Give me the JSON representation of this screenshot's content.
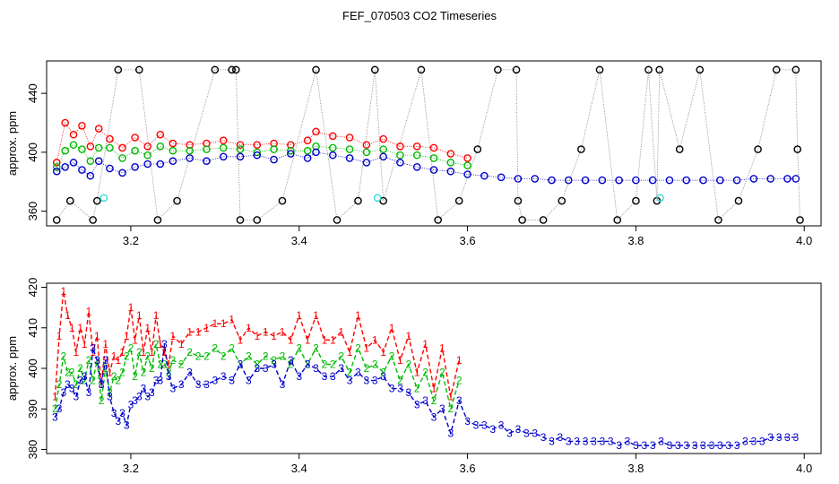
{
  "title": "FEF_070503  CO2 Timeseries",
  "colors": {
    "line1": "#ff0000",
    "line2": "#00bb00",
    "line3": "#0000cc",
    "black": "#000000",
    "cyan": "#33dddd"
  },
  "chart_data": [
    {
      "type": "scatter",
      "ylabel": "approx. ppm",
      "xlim": [
        3.1,
        4.02
      ],
      "ylim": [
        350,
        462
      ],
      "xticks": [
        "3.2",
        "3.4",
        "3.6",
        "3.8",
        "4.0"
      ],
      "xtick_values": [
        3.2,
        3.4,
        3.6,
        3.8,
        4.0
      ],
      "yticks": [
        "360",
        "400",
        "440"
      ],
      "ytick_values": [
        360,
        400,
        440
      ],
      "series": [
        {
          "key": "red",
          "color": "#ff0000",
          "x": [
            3.112,
            3.122,
            3.132,
            3.142,
            3.152,
            3.162,
            3.175,
            3.19,
            3.205,
            3.22,
            3.235,
            3.25,
            3.27,
            3.29,
            3.31,
            3.33,
            3.35,
            3.37,
            3.39,
            3.41,
            3.42,
            3.44,
            3.46,
            3.48,
            3.5,
            3.52,
            3.54,
            3.56,
            3.58,
            3.6
          ],
          "y": [
            393,
            420,
            412,
            418,
            404,
            416,
            409,
            403,
            410,
            404,
            412,
            406,
            405,
            406,
            408,
            405,
            405,
            406,
            405,
            408,
            414,
            411,
            410,
            405,
            409,
            404,
            404,
            403,
            399,
            396
          ]
        },
        {
          "key": "green",
          "color": "#00bb00",
          "x": [
            3.112,
            3.122,
            3.132,
            3.142,
            3.152,
            3.162,
            3.175,
            3.19,
            3.205,
            3.22,
            3.235,
            3.25,
            3.27,
            3.29,
            3.31,
            3.33,
            3.35,
            3.37,
            3.39,
            3.41,
            3.42,
            3.44,
            3.46,
            3.48,
            3.5,
            3.52,
            3.54,
            3.56,
            3.58,
            3.6
          ],
          "y": [
            390,
            401,
            405,
            402,
            394,
            403,
            403,
            396,
            401,
            398,
            404,
            401,
            401,
            402,
            403,
            402,
            400,
            402,
            401,
            401,
            404,
            403,
            402,
            400,
            402,
            398,
            398,
            396,
            393,
            391
          ]
        },
        {
          "key": "blue",
          "color": "#0000cc",
          "x": [
            3.112,
            3.122,
            3.132,
            3.142,
            3.152,
            3.162,
            3.175,
            3.19,
            3.205,
            3.22,
            3.235,
            3.25,
            3.27,
            3.29,
            3.31,
            3.33,
            3.35,
            3.37,
            3.39,
            3.41,
            3.42,
            3.44,
            3.46,
            3.48,
            3.5,
            3.52,
            3.54,
            3.56,
            3.58,
            3.6,
            3.62,
            3.64,
            3.66,
            3.68,
            3.7,
            3.72,
            3.74,
            3.76,
            3.78,
            3.8,
            3.82,
            3.84,
            3.86,
            3.88,
            3.9,
            3.92,
            3.94,
            3.96,
            3.98,
            3.99
          ],
          "y": [
            387,
            390,
            393,
            388,
            384,
            394,
            389,
            386,
            390,
            392,
            392,
            394,
            396,
            394,
            397,
            397,
            398,
            395,
            399,
            396,
            400,
            398,
            396,
            393,
            397,
            393,
            390,
            388,
            387,
            385,
            384,
            383,
            382,
            382,
            381,
            381,
            381,
            381,
            381,
            381,
            381,
            381,
            381,
            381,
            381,
            381,
            382,
            382,
            382,
            382
          ]
        },
        {
          "key": "black",
          "color": "#000000",
          "x": [
            3.112,
            3.128,
            3.155,
            3.16,
            3.185,
            3.21,
            3.232,
            3.255,
            3.3,
            3.32,
            3.325,
            3.33,
            3.35,
            3.38,
            3.42,
            3.445,
            3.47,
            3.49,
            3.5,
            3.545,
            3.565,
            3.59,
            3.612,
            3.636,
            3.658,
            3.66,
            3.665,
            3.69,
            3.712,
            3.735,
            3.757,
            3.778,
            3.8,
            3.815,
            3.825,
            3.828,
            3.852,
            3.876,
            3.898,
            3.922,
            3.945,
            3.967,
            3.99,
            3.992,
            3.995
          ],
          "y": [
            354,
            367,
            354,
            367,
            456,
            456,
            354,
            367,
            456,
            456,
            456,
            354,
            354,
            367,
            456,
            354,
            367,
            456,
            367,
            456,
            354,
            367,
            402,
            456,
            456,
            367,
            354,
            354,
            367,
            402,
            456,
            354,
            367,
            456,
            367,
            456,
            402,
            456,
            354,
            367,
            402,
            456,
            456,
            402,
            354
          ]
        },
        {
          "key": "cyan",
          "color": "#33dddd",
          "x": [
            3.168,
            3.493,
            3.829
          ],
          "y": [
            369,
            369,
            369
          ]
        }
      ]
    },
    {
      "type": "line",
      "ylabel": "approx. ppm",
      "xlim": [
        3.1,
        4.02
      ],
      "ylim": [
        379,
        421
      ],
      "xticks": [
        "3.2",
        "3.4",
        "3.6",
        "3.8",
        "4.0"
      ],
      "xtick_values": [
        3.2,
        3.4,
        3.6,
        3.8,
        4.0
      ],
      "yticks": [
        "380",
        "390",
        "400",
        "410",
        "420"
      ],
      "ytick_values": [
        380,
        390,
        400,
        410,
        420
      ],
      "series": [
        {
          "name": "1",
          "color": "#ff0000",
          "x": [
            3.11,
            3.115,
            3.12,
            3.125,
            3.13,
            3.135,
            3.14,
            3.145,
            3.15,
            3.155,
            3.16,
            3.165,
            3.17,
            3.175,
            3.18,
            3.185,
            3.19,
            3.195,
            3.2,
            3.205,
            3.21,
            3.215,
            3.22,
            3.225,
            3.23,
            3.235,
            3.24,
            3.245,
            3.25,
            3.26,
            3.27,
            3.28,
            3.29,
            3.3,
            3.31,
            3.32,
            3.33,
            3.34,
            3.35,
            3.36,
            3.37,
            3.38,
            3.39,
            3.4,
            3.41,
            3.42,
            3.43,
            3.44,
            3.45,
            3.46,
            3.47,
            3.48,
            3.49,
            3.5,
            3.51,
            3.52,
            3.53,
            3.54,
            3.55,
            3.56,
            3.57,
            3.58,
            3.59
          ],
          "y": [
            393,
            408,
            419,
            413,
            410,
            404,
            410,
            406,
            414,
            404,
            408,
            396,
            406,
            399,
            403,
            402,
            404,
            408,
            415,
            407,
            413,
            404,
            410,
            404,
            413,
            406,
            404,
            401,
            408,
            406,
            409,
            409,
            410,
            411,
            411,
            412,
            407,
            410,
            408,
            409,
            408,
            409,
            407,
            413,
            407,
            413,
            407,
            407,
            409,
            404,
            413,
            405,
            407,
            404,
            410,
            402,
            408,
            399,
            406,
            395,
            405,
            393,
            402
          ]
        },
        {
          "name": "2",
          "color": "#00bb00",
          "x": [
            3.11,
            3.115,
            3.12,
            3.125,
            3.13,
            3.135,
            3.14,
            3.145,
            3.15,
            3.155,
            3.16,
            3.165,
            3.17,
            3.175,
            3.18,
            3.185,
            3.19,
            3.195,
            3.2,
            3.205,
            3.21,
            3.215,
            3.22,
            3.225,
            3.23,
            3.235,
            3.24,
            3.245,
            3.25,
            3.26,
            3.27,
            3.28,
            3.29,
            3.3,
            3.31,
            3.32,
            3.33,
            3.34,
            3.35,
            3.36,
            3.37,
            3.38,
            3.39,
            3.4,
            3.41,
            3.42,
            3.43,
            3.44,
            3.45,
            3.46,
            3.47,
            3.48,
            3.49,
            3.5,
            3.51,
            3.52,
            3.53,
            3.54,
            3.55,
            3.56,
            3.57,
            3.58,
            3.59
          ],
          "y": [
            390,
            396,
            403,
            399,
            399,
            396,
            400,
            397,
            402,
            397,
            402,
            392,
            400,
            394,
            398,
            397,
            399,
            403,
            405,
            398,
            404,
            399,
            403,
            400,
            406,
            401,
            401,
            399,
            402,
            401,
            404,
            403,
            403,
            405,
            403,
            405,
            401,
            403,
            401,
            403,
            402,
            403,
            401,
            405,
            401,
            405,
            401,
            401,
            403,
            399,
            405,
            400,
            401,
            399,
            403,
            397,
            401,
            395,
            399,
            392,
            399,
            390,
            397
          ]
        },
        {
          "name": "3",
          "color": "#0000cc",
          "x": [
            3.11,
            3.115,
            3.12,
            3.125,
            3.13,
            3.135,
            3.14,
            3.145,
            3.15,
            3.155,
            3.16,
            3.165,
            3.17,
            3.175,
            3.18,
            3.185,
            3.19,
            3.195,
            3.2,
            3.205,
            3.21,
            3.215,
            3.22,
            3.225,
            3.23,
            3.235,
            3.24,
            3.245,
            3.25,
            3.26,
            3.27,
            3.28,
            3.29,
            3.3,
            3.31,
            3.32,
            3.33,
            3.34,
            3.35,
            3.36,
            3.37,
            3.38,
            3.39,
            3.4,
            3.41,
            3.42,
            3.43,
            3.44,
            3.45,
            3.46,
            3.47,
            3.48,
            3.49,
            3.5,
            3.51,
            3.52,
            3.53,
            3.54,
            3.55,
            3.56,
            3.57,
            3.58,
            3.59,
            3.6,
            3.61,
            3.62,
            3.63,
            3.64,
            3.65,
            3.66,
            3.67,
            3.68,
            3.69,
            3.7,
            3.71,
            3.72,
            3.73,
            3.74,
            3.75,
            3.76,
            3.77,
            3.78,
            3.79,
            3.8,
            3.81,
            3.82,
            3.83,
            3.84,
            3.85,
            3.86,
            3.87,
            3.88,
            3.89,
            3.9,
            3.91,
            3.92,
            3.93,
            3.94,
            3.95,
            3.96,
            3.97,
            3.98,
            3.99
          ],
          "y": [
            388,
            390,
            394,
            396,
            395,
            393,
            397,
            398,
            394,
            405,
            402,
            396,
            402,
            393,
            389,
            387,
            389,
            386,
            391,
            392,
            393,
            395,
            393,
            394,
            397,
            397,
            406,
            398,
            395,
            396,
            399,
            396,
            396,
            397,
            398,
            397,
            401,
            397,
            400,
            400,
            401,
            396,
            402,
            398,
            401,
            400,
            398,
            398,
            400,
            397,
            399,
            397,
            397,
            398,
            395,
            395,
            394,
            391,
            392,
            388,
            390,
            384,
            392,
            387,
            386,
            386,
            385,
            386,
            384,
            385,
            384,
            384,
            383,
            382,
            383,
            382,
            382,
            382,
            382,
            382,
            382,
            381,
            382,
            381,
            381,
            381,
            382,
            381,
            381,
            381,
            381,
            381,
            381,
            381,
            381,
            381,
            382,
            382,
            382,
            383,
            383,
            383,
            383
          ]
        }
      ]
    }
  ]
}
